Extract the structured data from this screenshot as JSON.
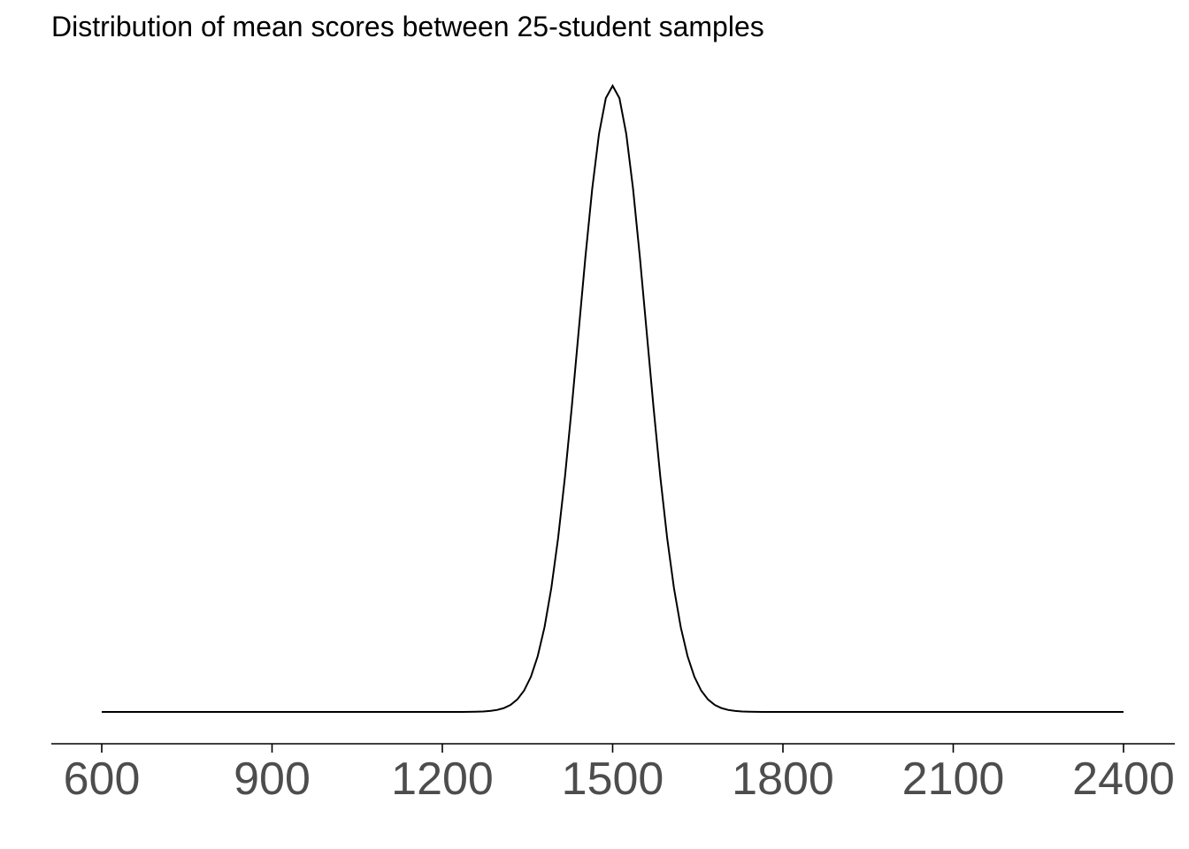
{
  "chart_data": {
    "type": "line",
    "title": "Distribution of mean scores between 25-student samples",
    "xlabel": "",
    "ylabel": "",
    "xlim": [
      600,
      2400
    ],
    "x_ticks": [
      "600",
      "900",
      "1200",
      "1500",
      "1800",
      "2100",
      "2400"
    ],
    "y_axis_shown": false,
    "grid": false,
    "distribution": {
      "kind": "normal",
      "mean": 1500,
      "sd": 60
    },
    "series": [
      {
        "x": [
          600,
          1200,
          1260,
          1280,
          1300,
          1320,
          1340,
          1360,
          1380,
          1400,
          1420,
          1440,
          1460,
          1480,
          1500,
          1520,
          1540,
          1560,
          1580,
          1600,
          1620,
          1640,
          1660,
          1680,
          1700,
          1720,
          1740,
          1800,
          2400
        ],
        "y": [
          0.0,
          0.0,
          0.0003,
          0.0008,
          0.0018,
          0.0037,
          0.0067,
          0.011,
          0.0162,
          0.0216,
          0.0261,
          0.0287,
          0.0302,
          0.0298,
          0.03,
          0.0298,
          0.0302,
          0.0287,
          0.0261,
          0.0216,
          0.0162,
          0.011,
          0.0067,
          0.0037,
          0.0018,
          0.0008,
          0.0003,
          0.0,
          0.0
        ],
        "color": "#000000"
      }
    ],
    "colors": {
      "line": "#000000",
      "axis": "#000000",
      "tick_label": "#4d4d4d"
    }
  }
}
